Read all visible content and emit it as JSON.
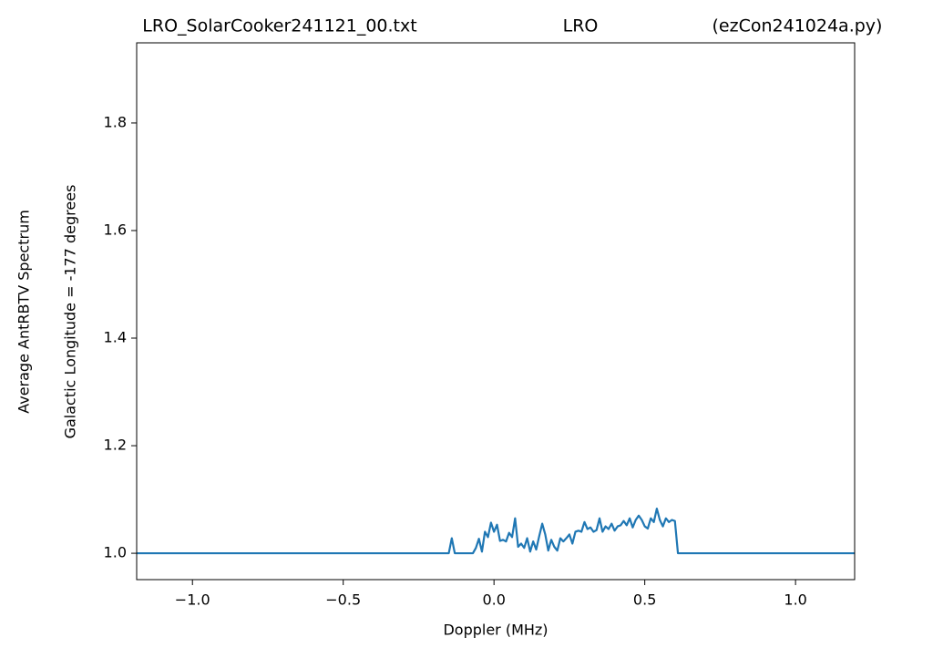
{
  "chart_data": {
    "type": "line",
    "title": [
      "LRO_SolarCooker241121_00.txt",
      "LRO",
      "(ezCon241024a.py)"
    ],
    "xlabel": "Doppler (MHz)",
    "ylabel": [
      "Average AntRBTV Spectrum",
      "Galactic Longitude = -177 degrees"
    ],
    "x": [
      -1.19,
      -0.15,
      -0.14,
      -0.13,
      -0.12,
      -0.11,
      -0.1,
      -0.09,
      -0.08,
      -0.07,
      -0.06,
      -0.05,
      -0.04,
      -0.03,
      -0.02,
      -0.01,
      0.0,
      0.01,
      0.02,
      0.03,
      0.04,
      0.05,
      0.06,
      0.07,
      0.08,
      0.09,
      0.1,
      0.11,
      0.12,
      0.13,
      0.14,
      0.15,
      0.16,
      0.17,
      0.18,
      0.19,
      0.2,
      0.21,
      0.22,
      0.23,
      0.24,
      0.25,
      0.26,
      0.27,
      0.28,
      0.29,
      0.3,
      0.31,
      0.32,
      0.33,
      0.34,
      0.35,
      0.36,
      0.37,
      0.38,
      0.39,
      0.4,
      0.41,
      0.42,
      0.43,
      0.44,
      0.45,
      0.46,
      0.47,
      0.48,
      0.49,
      0.5,
      0.51,
      0.52,
      0.53,
      0.54,
      0.55,
      0.56,
      0.57,
      0.58,
      0.59,
      0.6,
      0.61,
      1.2
    ],
    "series": [
      {
        "color": "#1f77b4",
        "values": [
          1.0,
          1.0,
          1.028,
          1.0,
          1.0,
          1.0,
          1.0,
          1.0,
          1.0,
          1.0,
          1.01,
          1.027,
          1.003,
          1.04,
          1.03,
          1.057,
          1.04,
          1.053,
          1.023,
          1.025,
          1.022,
          1.038,
          1.03,
          1.065,
          1.012,
          1.018,
          1.01,
          1.028,
          1.003,
          1.022,
          1.007,
          1.032,
          1.055,
          1.035,
          1.005,
          1.025,
          1.012,
          1.005,
          1.028,
          1.022,
          1.028,
          1.035,
          1.018,
          1.04,
          1.042,
          1.04,
          1.058,
          1.045,
          1.048,
          1.04,
          1.043,
          1.065,
          1.04,
          1.05,
          1.045,
          1.055,
          1.042,
          1.05,
          1.052,
          1.06,
          1.052,
          1.065,
          1.048,
          1.062,
          1.07,
          1.062,
          1.05,
          1.046,
          1.065,
          1.058,
          1.083,
          1.062,
          1.05,
          1.065,
          1.058,
          1.062,
          1.06,
          1.0,
          1.0
        ]
      }
    ],
    "xlim": [
      -1.185,
      1.196
    ],
    "ylim": [
      0.951,
      1.949
    ],
    "xticks": [
      {
        "value": -1.0,
        "label": "−1.0"
      },
      {
        "value": -0.5,
        "label": "−0.5"
      },
      {
        "value": 0.0,
        "label": "0.0"
      },
      0.5,
      {
        "value": 1.0,
        "label": "1.0"
      }
    ],
    "yticks": [
      {
        "value": 1.0,
        "label": "1.0"
      },
      1.2,
      1.4,
      1.6,
      1.8
    ],
    "grid": false
  }
}
